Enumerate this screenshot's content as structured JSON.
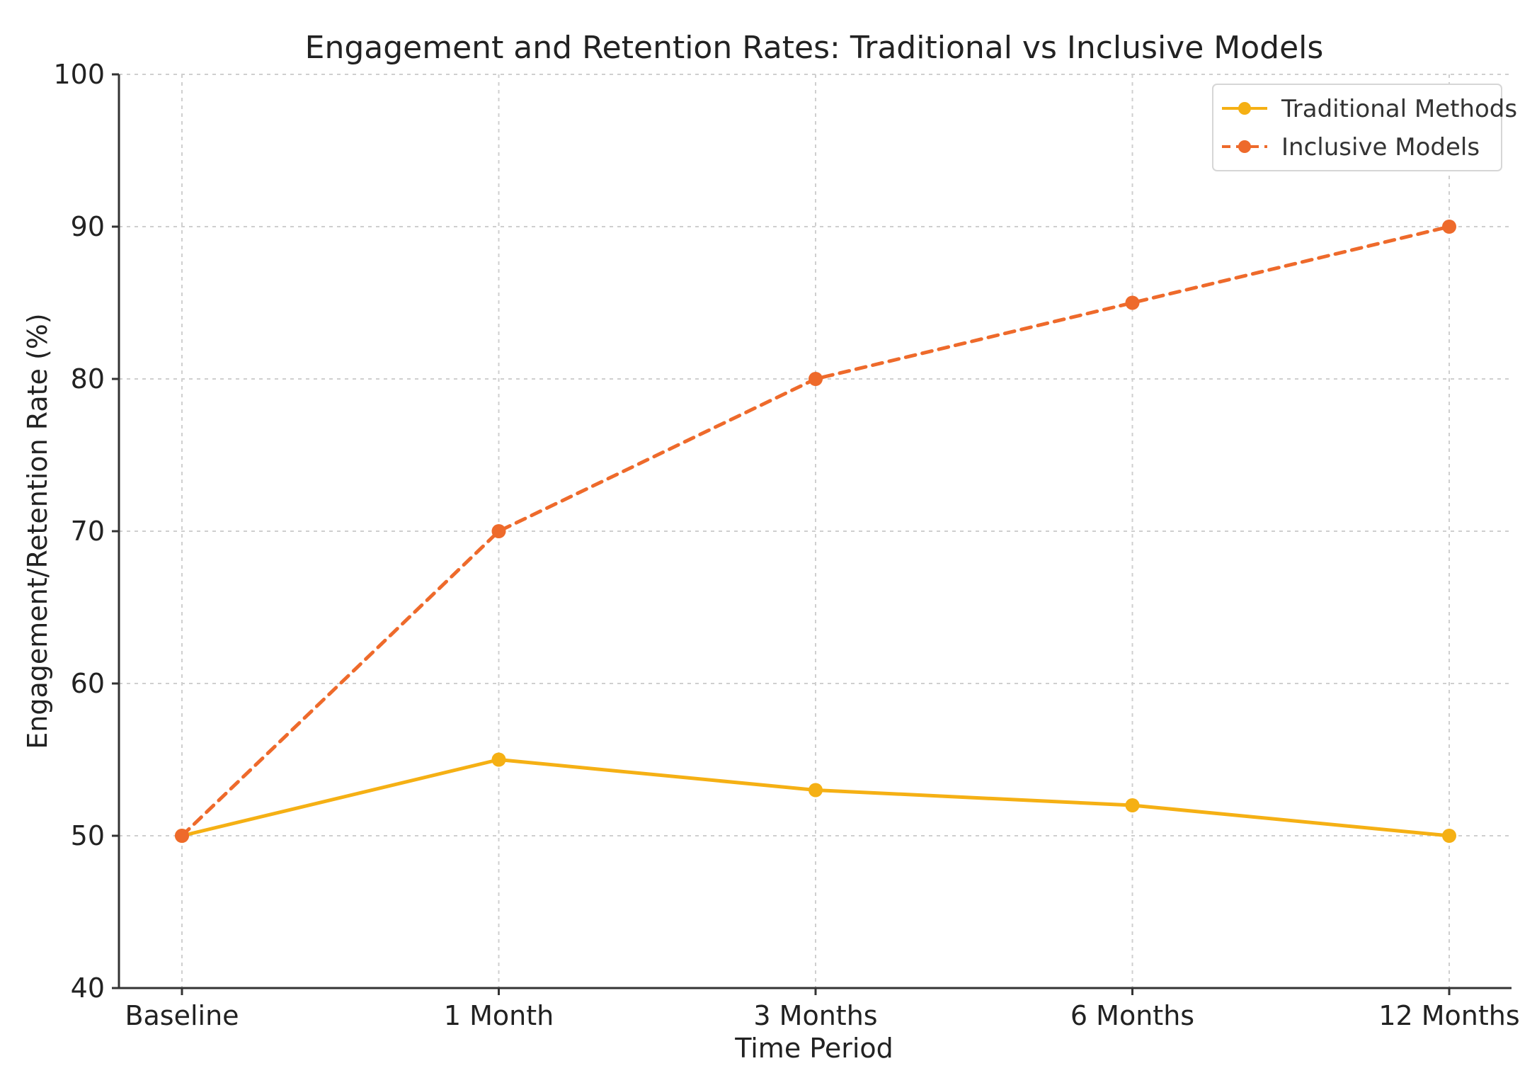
{
  "chart_data": {
    "type": "line",
    "title": "Engagement and Retention Rates: Traditional vs Inclusive Models",
    "xlabel": "Time Period",
    "ylabel": "Engagement/Retention Rate (%)",
    "categories": [
      "Baseline",
      "1 Month",
      "3 Months",
      "6 Months",
      "12 Months"
    ],
    "ylim": [
      40,
      100
    ],
    "yticks": [
      40,
      50,
      60,
      70,
      80,
      90,
      100
    ],
    "grid": true,
    "legend_position": "top-right",
    "series": [
      {
        "name": "Traditional Methods",
        "values": [
          50,
          55,
          53,
          52,
          50
        ],
        "color": "#F5B014",
        "style": "solid",
        "marker": "circle"
      },
      {
        "name": "Inclusive Models",
        "values": [
          50,
          70,
          80,
          85,
          90
        ],
        "color": "#EE6A2B",
        "style": "dashed",
        "marker": "circle"
      }
    ]
  }
}
